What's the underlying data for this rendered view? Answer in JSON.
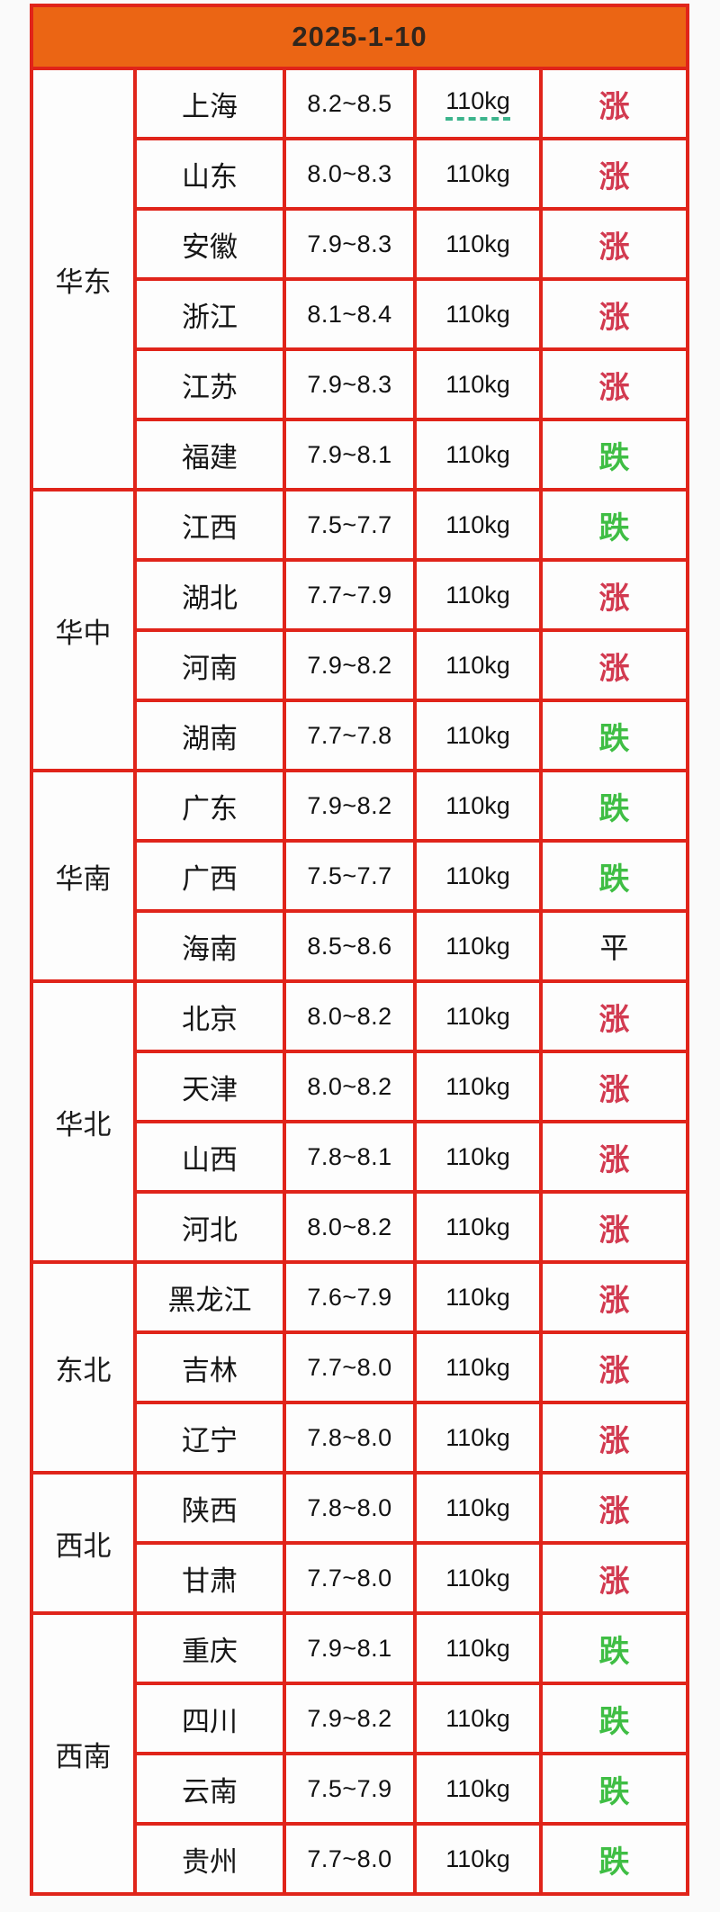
{
  "header": {
    "date": "2025-1-10"
  },
  "colors": {
    "header_bg": "#EB6514",
    "grid_border": "#E0241A",
    "trend_up": "#D23A50",
    "trend_down": "#3FBE44",
    "trend_flat": "#141414",
    "weight_underline": "#3CB48C"
  },
  "chart_data": {
    "type": "table",
    "title": "2025-1-10",
    "legend_note": "涨=up(red) 跌=down(green) 平=flat(black)",
    "regions": [
      {
        "name": "华东",
        "rows": [
          {
            "province": "上海",
            "price": "8.2~8.5",
            "weight": "110kg",
            "trend": "涨",
            "trend_dir": "up",
            "underline": true
          },
          {
            "province": "山东",
            "price": "8.0~8.3",
            "weight": "110kg",
            "trend": "涨",
            "trend_dir": "up"
          },
          {
            "province": "安徽",
            "price": "7.9~8.3",
            "weight": "110kg",
            "trend": "涨",
            "trend_dir": "up"
          },
          {
            "province": "浙江",
            "price": "8.1~8.4",
            "weight": "110kg",
            "trend": "涨",
            "trend_dir": "up"
          },
          {
            "province": "江苏",
            "price": "7.9~8.3",
            "weight": "110kg",
            "trend": "涨",
            "trend_dir": "up"
          },
          {
            "province": "福建",
            "price": "7.9~8.1",
            "weight": "110kg",
            "trend": "跌",
            "trend_dir": "down"
          }
        ]
      },
      {
        "name": "华中",
        "rows": [
          {
            "province": "江西",
            "price": "7.5~7.7",
            "weight": "110kg",
            "trend": "跌",
            "trend_dir": "down"
          },
          {
            "province": "湖北",
            "price": "7.7~7.9",
            "weight": "110kg",
            "trend": "涨",
            "trend_dir": "up"
          },
          {
            "province": "河南",
            "price": "7.9~8.2",
            "weight": "110kg",
            "trend": "涨",
            "trend_dir": "up"
          },
          {
            "province": "湖南",
            "price": "7.7~7.8",
            "weight": "110kg",
            "trend": "跌",
            "trend_dir": "down"
          }
        ]
      },
      {
        "name": "华南",
        "rows": [
          {
            "province": "广东",
            "price": "7.9~8.2",
            "weight": "110kg",
            "trend": "跌",
            "trend_dir": "down"
          },
          {
            "province": "广西",
            "price": "7.5~7.7",
            "weight": "110kg",
            "trend": "跌",
            "trend_dir": "down"
          },
          {
            "province": "海南",
            "price": "8.5~8.6",
            "weight": "110kg",
            "trend": "平",
            "trend_dir": "flat"
          }
        ]
      },
      {
        "name": "华北",
        "rows": [
          {
            "province": "北京",
            "price": "8.0~8.2",
            "weight": "110kg",
            "trend": "涨",
            "trend_dir": "up"
          },
          {
            "province": "天津",
            "price": "8.0~8.2",
            "weight": "110kg",
            "trend": "涨",
            "trend_dir": "up"
          },
          {
            "province": "山西",
            "price": "7.8~8.1",
            "weight": "110kg",
            "trend": "涨",
            "trend_dir": "up"
          },
          {
            "province": "河北",
            "price": "8.0~8.2",
            "weight": "110kg",
            "trend": "涨",
            "trend_dir": "up"
          }
        ]
      },
      {
        "name": "东北",
        "rows": [
          {
            "province": "黑龙江",
            "price": "7.6~7.9",
            "weight": "110kg",
            "trend": "涨",
            "trend_dir": "up"
          },
          {
            "province": "吉林",
            "price": "7.7~8.0",
            "weight": "110kg",
            "trend": "涨",
            "trend_dir": "up"
          },
          {
            "province": "辽宁",
            "price": "7.8~8.0",
            "weight": "110kg",
            "trend": "涨",
            "trend_dir": "up"
          }
        ]
      },
      {
        "name": "西北",
        "rows": [
          {
            "province": "陕西",
            "price": "7.8~8.0",
            "weight": "110kg",
            "trend": "涨",
            "trend_dir": "up"
          },
          {
            "province": "甘肃",
            "price": "7.7~8.0",
            "weight": "110kg",
            "trend": "涨",
            "trend_dir": "up"
          }
        ]
      },
      {
        "name": "西南",
        "rows": [
          {
            "province": "重庆",
            "price": "7.9~8.1",
            "weight": "110kg",
            "trend": "跌",
            "trend_dir": "down"
          },
          {
            "province": "四川",
            "price": "7.9~8.2",
            "weight": "110kg",
            "trend": "跌",
            "trend_dir": "down"
          },
          {
            "province": "云南",
            "price": "7.5~7.9",
            "weight": "110kg",
            "trend": "跌",
            "trend_dir": "down"
          },
          {
            "province": "贵州",
            "price": "7.7~8.0",
            "weight": "110kg",
            "trend": "跌",
            "trend_dir": "down"
          }
        ]
      }
    ]
  }
}
